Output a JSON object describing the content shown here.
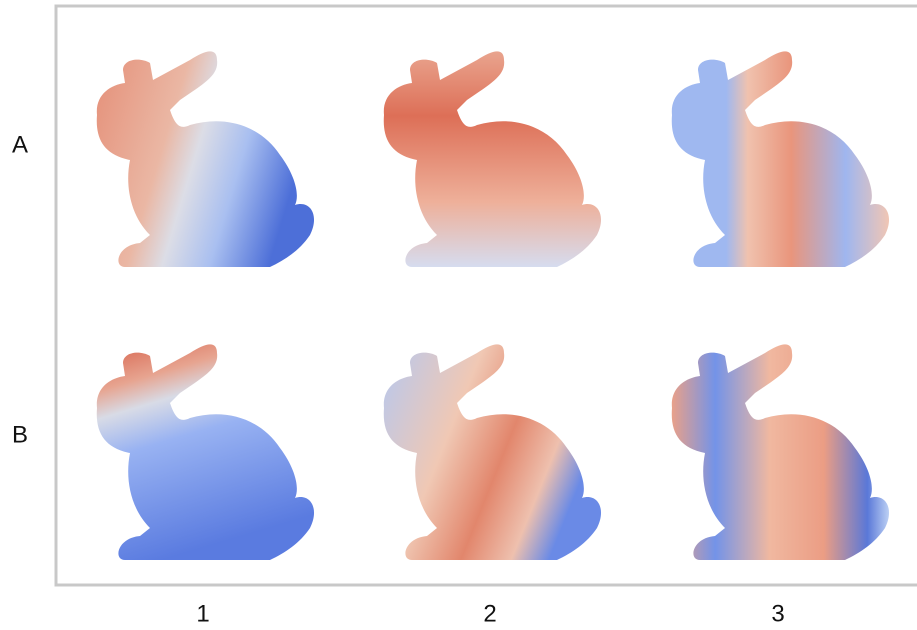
{
  "rows": [
    "A",
    "B"
  ],
  "columns": [
    "1",
    "2",
    "3"
  ]
}
